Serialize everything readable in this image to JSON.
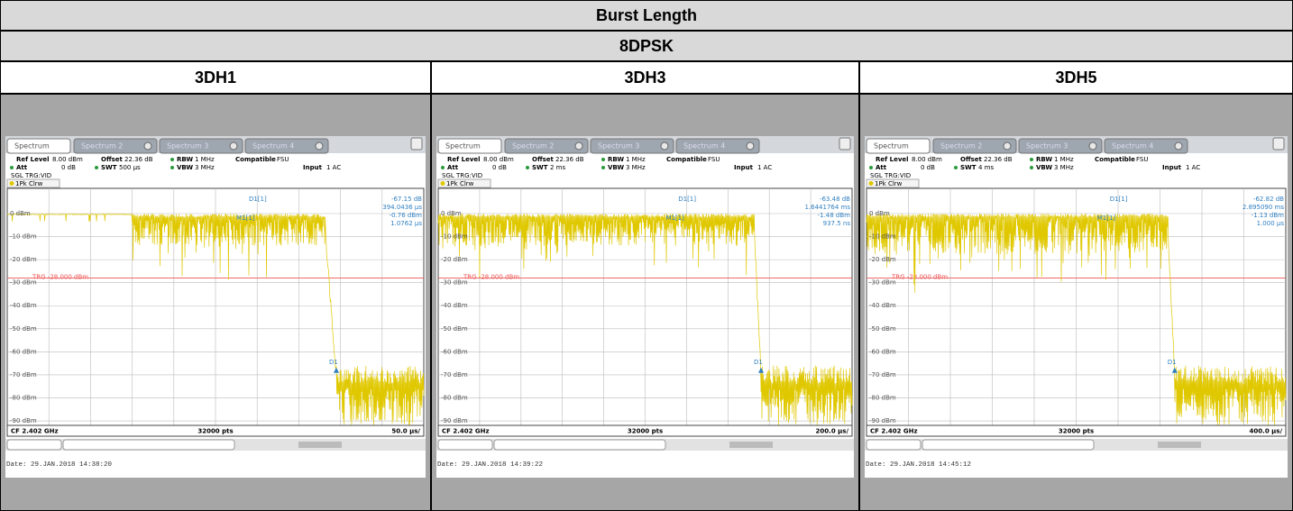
{
  "header": {
    "title": "Burst Length",
    "subtitle": "8DPSK"
  },
  "common": {
    "tabs": [
      "Spectrum",
      "Spectrum 2",
      "Spectrum 3",
      "Spectrum 4"
    ],
    "info": [
      {
        "key": "Ref Level",
        "value": "8.00 dBm"
      },
      {
        "key": "Offset",
        "value": "22.36 dB"
      },
      {
        "key": "RBW",
        "value": "1 MHz"
      },
      {
        "key": "Compatible",
        "value": "FSU"
      },
      {
        "key": "Att",
        "value": "0 dB"
      },
      {
        "key": "VBW",
        "value": "3 MHz"
      },
      {
        "key": "Input",
        "value": "1 AC"
      }
    ],
    "swt_key": "SWT",
    "mode": "SGL TRG:VID",
    "trace": "1Pk Clrw",
    "y_labels": [
      "0 dBm",
      "-10 dBm",
      "-20 dBm",
      "-30 dBm",
      "-40 dBm",
      "-50 dBm",
      "-60 dBm",
      "-70 dBm",
      "-80 dBm",
      "-90 dBm"
    ],
    "trigger": "TRG -28.000 dBm",
    "delta_marker": "D1",
    "center": "CF 2.402 GHz",
    "points": "32000 pts"
  },
  "panels": [
    {
      "label": "3DH1",
      "swt": "500 µs",
      "markers": [
        "D1[1]",
        "-67.15 dB",
        "394.0436 µs",
        "M1[1]",
        "-0.76 dBm",
        "1.0762 µs"
      ],
      "span": "50.0 µs/",
      "date": "Date: 29.JAN.2018 14:38:20"
    },
    {
      "label": "3DH3",
      "swt": "2 ms",
      "markers": [
        "D1[1]",
        "-63.48 dB",
        "1.6441764 ms",
        "M1[1]",
        "-1.48 dBm",
        "937.5 ns"
      ],
      "span": "200.0 µs/",
      "date": "Date: 29.JAN.2018 14:39:22"
    },
    {
      "label": "3DH5",
      "swt": "4 ms",
      "markers": [
        "D1[1]",
        "-62.82 dB",
        "2.895090 ms",
        "M1[1]",
        "-1.13 dBm",
        "1.000 µs"
      ],
      "span": "400.0 µs/",
      "date": "Date: 29.JAN.2018 14:45:12"
    }
  ]
}
